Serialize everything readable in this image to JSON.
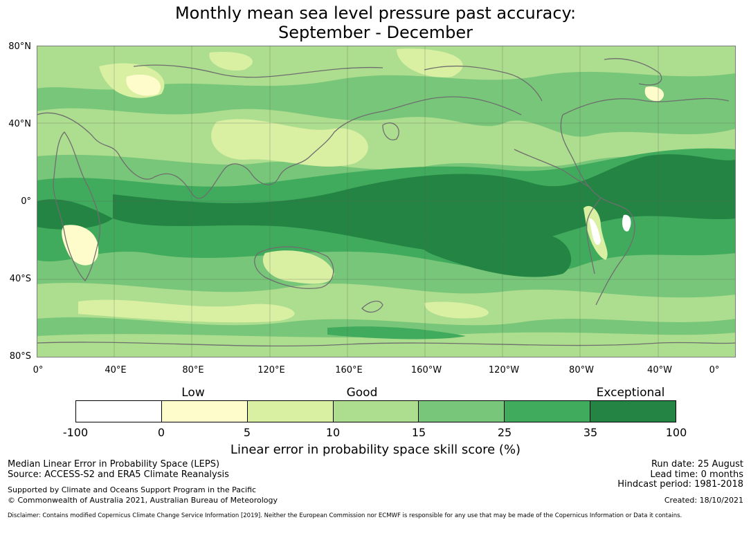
{
  "title": {
    "line1": "Monthly mean sea level pressure past accuracy:",
    "line2": "September - December"
  },
  "map": {
    "lat_labels": [
      "80°N",
      "40°N",
      "0°",
      "40°S",
      "80°S"
    ],
    "lon_labels": [
      "0°",
      "40°E",
      "80°E",
      "120°E",
      "160°E",
      "160°W",
      "120°W",
      "80°W",
      "40°W",
      "0°"
    ]
  },
  "colorbar": {
    "category_labels": [
      "Low",
      "Good",
      "Exceptional"
    ],
    "tick_labels": [
      "-100",
      "0",
      "5",
      "10",
      "15",
      "25",
      "35",
      "100"
    ],
    "colors": [
      "#ffffff",
      "#fffccc",
      "#d9f0a3",
      "#addd8e",
      "#78c679",
      "#41ab5d",
      "#238443"
    ],
    "caption": "Linear error in probability space skill score (%)"
  },
  "footer": {
    "metric": "Median Linear Error in Probability Space (LEPS)",
    "source": "Source: ACCESS-S2 and ERA5 Climate Reanalysis",
    "support": "Supported by Climate and Oceans Support Program in the Pacific",
    "copyright": "© Commonwealth of Australia 2021, Australian Bureau of Meteorology",
    "run_date": "Run date: 25 August",
    "lead_time": "Lead time: 0 months",
    "hindcast": "Hindcast period: 1981-2018",
    "created": "Created: 18/10/2021",
    "disclaimer": "Disclaimer: Contains modified Copernicus Climate Change Service Information [2019]. Neither the European Commission nor ECMWF is responsible for any use that may be made of the Copernicus Information or Data it contains."
  }
}
